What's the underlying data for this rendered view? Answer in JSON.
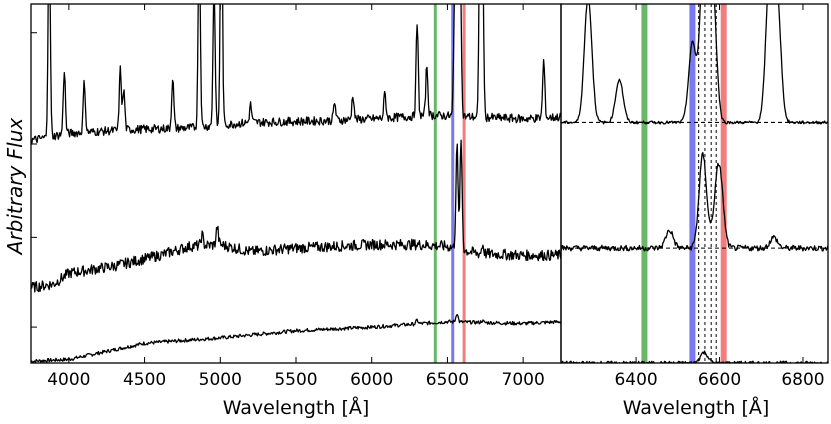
{
  "chart_data": [
    {
      "type": "line",
      "panel": "left",
      "xlabel": "Wavelength [Å]",
      "ylabel": "Arbitrary Flux",
      "xlim": [
        3750,
        7250
      ],
      "ylim": [
        0,
        10
      ],
      "x_ticks": [
        4000,
        4500,
        5000,
        5500,
        6000,
        6500,
        7000
      ],
      "y_ticks": [
        1.0,
        3.5,
        6.1,
        9.2
      ],
      "y_tick_labels": "none",
      "grid": false,
      "vertical_bands": [
        {
          "x": 6420,
          "color": "#5aaf5a"
        },
        {
          "x": 6535,
          "color": "#6a6af0"
        },
        {
          "x": 6610,
          "color": "#f07070"
        }
      ],
      "series": [
        {
          "baseline": 0.0,
          "continuum": [
            [
              3750,
              0.05
            ],
            [
              4000,
              0.1
            ],
            [
              4500,
              0.55
            ],
            [
              5000,
              0.7
            ],
            [
              5500,
              0.9
            ],
            [
              6000,
              1.0
            ],
            [
              6500,
              1.15
            ],
            [
              7000,
              1.1
            ],
            [
              7250,
              1.15
            ]
          ],
          "lines": [
            [
              6563,
              0.25
            ],
            [
              6300,
              0.1
            ],
            [
              6730,
              0.05
            ]
          ],
          "noise": 0.05
        },
        {
          "baseline": 0.0,
          "continuum": [
            [
              3750,
              2.1
            ],
            [
              3900,
              2.2
            ],
            [
              4000,
              2.5
            ],
            [
              4300,
              2.7
            ],
            [
              4600,
              3.0
            ],
            [
              4800,
              3.25
            ],
            [
              5000,
              3.3
            ],
            [
              5200,
              3.1
            ],
            [
              5500,
              3.2
            ],
            [
              6000,
              3.3
            ],
            [
              6300,
              3.3
            ],
            [
              6500,
              3.25
            ],
            [
              6700,
              3.05
            ],
            [
              7000,
              3.0
            ],
            [
              7250,
              3.0
            ]
          ],
          "lines": [
            [
              6563,
              2.9
            ],
            [
              6590,
              3.0
            ],
            [
              6733,
              0.25
            ],
            [
              4980,
              0.5
            ],
            [
              4880,
              0.3
            ]
          ],
          "noise": 0.15
        },
        {
          "baseline": 0.0,
          "continuum": [
            [
              3750,
              6.2
            ],
            [
              4000,
              6.4
            ],
            [
              4400,
              6.5
            ],
            [
              4800,
              6.55
            ],
            [
              5200,
              6.7
            ],
            [
              5700,
              6.75
            ],
            [
              6000,
              6.8
            ],
            [
              6400,
              6.9
            ],
            [
              7000,
              6.8
            ],
            [
              7250,
              6.85
            ]
          ],
          "lines": [
            [
              3870,
              6.0
            ],
            [
              3970,
              1.8
            ],
            [
              4102,
              1.4
            ],
            [
              4340,
              1.7
            ],
            [
              4363,
              1.1
            ],
            [
              4686,
              1.4
            ],
            [
              4861,
              5.5
            ],
            [
              4959,
              3.9
            ],
            [
              5007,
              7.0
            ],
            [
              5200,
              0.5
            ],
            [
              5755,
              0.5
            ],
            [
              5876,
              0.7
            ],
            [
              6087,
              0.7
            ],
            [
              6300,
              2.6
            ],
            [
              6364,
              1.4
            ],
            [
              6548,
              3.0
            ],
            [
              6563,
              5.5
            ],
            [
              6584,
              4.5
            ],
            [
              6716,
              6.0
            ],
            [
              6731,
              5.2
            ],
            [
              7136,
              1.6
            ]
          ],
          "noise": 0.12
        }
      ]
    },
    {
      "type": "line",
      "panel": "right",
      "xlabel": "Wavelength [Å]",
      "xlim": [
        6220,
        6860
      ],
      "ylim": [
        0,
        10
      ],
      "x_ticks": [
        6400,
        6600,
        6800
      ],
      "grid": false,
      "vertical_bands": [
        {
          "x": 6420,
          "color": "#5aaf5a"
        },
        {
          "x": 6535,
          "color": "#6a6af0"
        },
        {
          "x": 6610,
          "color": "#f07070"
        }
      ],
      "vertical_dashed_lines": [
        6550,
        6565,
        6580,
        6592
      ],
      "series": [
        {
          "continuum_level": 0.0,
          "offset": 0.3,
          "lines": [
            [
              6563,
              0.3
            ]
          ],
          "noise": 0.05
        },
        {
          "continuum_level": 3.2,
          "offset": 3.2,
          "lines": [
            [
              6560,
              2.6
            ],
            [
              6600,
              2.0
            ],
            [
              6590,
              0.6
            ],
            [
              6730,
              0.3
            ],
            [
              6480,
              0.5
            ]
          ],
          "noise": 0.08
        },
        {
          "continuum_level": 6.7,
          "offset": 6.7,
          "lines": [
            [
              6285,
              3.5
            ],
            [
              6360,
              1.2
            ],
            [
              6535,
              2.2
            ],
            [
              6563,
              5.0
            ],
            [
              6583,
              3.8
            ],
            [
              6720,
              4.0
            ],
            [
              6738,
              3.4
            ]
          ],
          "noise": 0.04
        }
      ]
    }
  ]
}
